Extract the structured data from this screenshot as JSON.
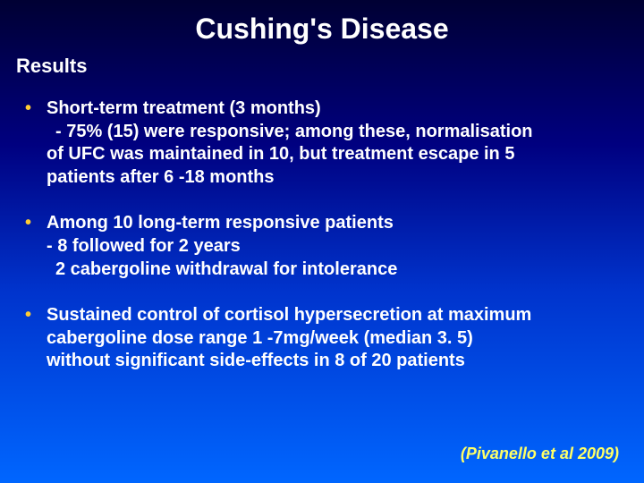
{
  "title": "Cushing's Disease",
  "subtitle": "Results",
  "bullets": [
    {
      "head": "Short-term treatment (3 months)",
      "sub1": "- 75% (15) were responsive; among these, normalisation",
      "sub2": "of UFC was maintained in 10, but treatment escape in 5",
      "sub3": "patients after  6 -18 months"
    },
    {
      "head": "Among 10 long-term responsive patients",
      "sub1": "- 8 followed for 2 years",
      "sub2": "2 cabergoline withdrawal for intolerance"
    },
    {
      "head": "Sustained control of cortisol hypersecretion at maximum",
      "sub1": "cabergoline dose range 1 -7mg/week (median 3. 5)",
      "sub2": "without  significant side-effects in 8 of 20 patients"
    }
  ],
  "citation": "(Pivanello et al 2009)",
  "colors": {
    "bullet_mark": "#ffcc33",
    "citation": "#ffff66"
  }
}
